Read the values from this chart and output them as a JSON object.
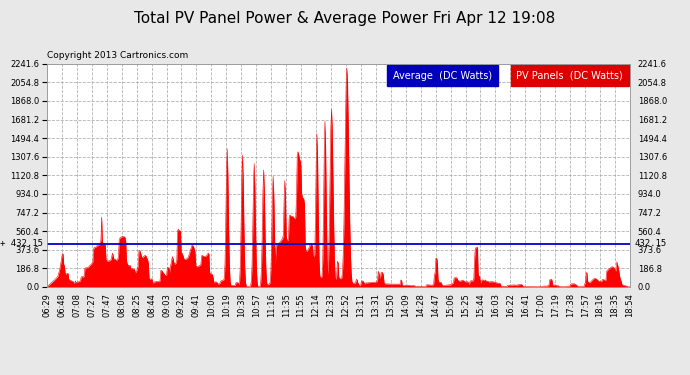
{
  "title": "Total PV Panel Power & Average Power Fri Apr 12 19:08",
  "copyright": "Copyright 2013 Cartronics.com",
  "legend_avg_label": "Average  (DC Watts)",
  "legend_pv_label": "PV Panels  (DC Watts)",
  "legend_avg_color": "#0000bb",
  "legend_pv_color": "#dd0000",
  "avg_line_value": 432.15,
  "avg_line_color": "#0000cc",
  "avg_label": "432.15",
  "y_max": 2241.6,
  "y_min": 0.0,
  "y_ticks": [
    0.0,
    186.8,
    373.6,
    560.4,
    747.2,
    934.0,
    1120.8,
    1307.6,
    1494.4,
    1681.2,
    1868.0,
    2054.8,
    2241.6
  ],
  "background_color": "#e8e8e8",
  "plot_bg_color": "#ffffff",
  "grid_color": "#aaaaaa",
  "fill_color": "#ff0000",
  "x_labels": [
    "06:29",
    "06:48",
    "07:08",
    "07:27",
    "07:47",
    "08:06",
    "08:25",
    "08:44",
    "09:03",
    "09:22",
    "09:41",
    "10:00",
    "10:19",
    "10:38",
    "10:57",
    "11:16",
    "11:35",
    "11:55",
    "12:14",
    "12:33",
    "12:52",
    "13:11",
    "13:31",
    "13:50",
    "14:09",
    "14:28",
    "14:47",
    "15:06",
    "15:25",
    "15:44",
    "16:03",
    "16:22",
    "16:41",
    "17:00",
    "17:19",
    "17:38",
    "17:57",
    "18:16",
    "18:35",
    "18:54"
  ],
  "title_fontsize": 11,
  "copyright_fontsize": 6.5,
  "tick_fontsize": 6,
  "legend_fontsize": 7,
  "avg_label_fontsize": 6.5
}
